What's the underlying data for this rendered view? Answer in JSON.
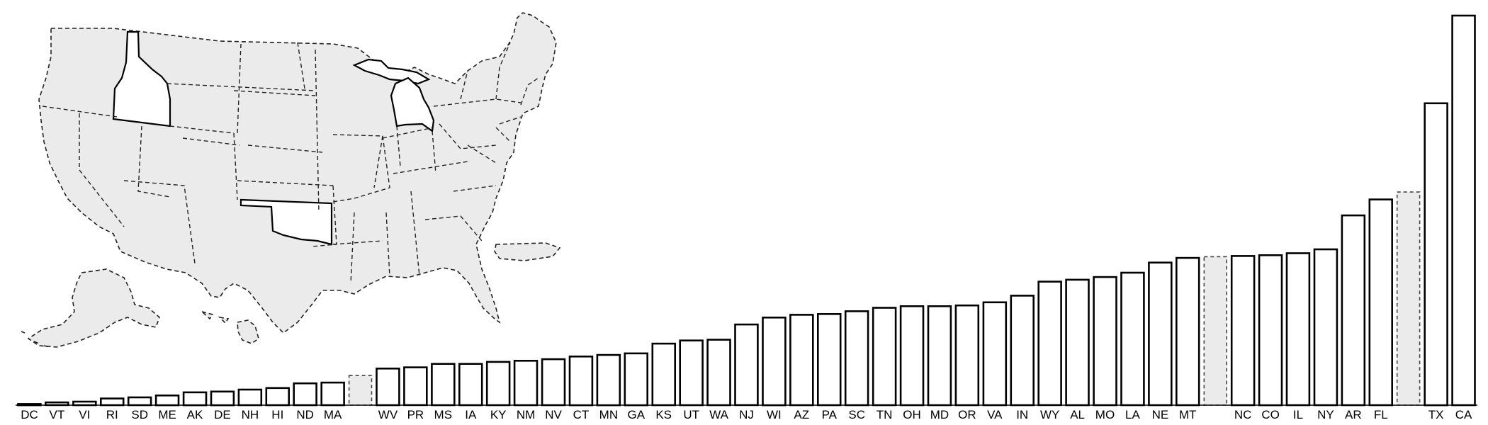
{
  "chart_data": {
    "type": "bar",
    "title": "",
    "xlabel": "",
    "ylabel": "",
    "ylim": [
      0,
      100
    ],
    "grid": false,
    "categories": [
      "DC",
      "VT",
      "VI",
      "RI",
      "SD",
      "ME",
      "AK",
      "DE",
      "NH",
      "HI",
      "ND",
      "MA",
      "",
      "WV",
      "PR",
      "MS",
      "IA",
      "KY",
      "NM",
      "NV",
      "CT",
      "MN",
      "GA",
      "KS",
      "UT",
      "WA",
      "NJ",
      "WI",
      "AZ",
      "PA",
      "SC",
      "TN",
      "OH",
      "MD",
      "OR",
      "VA",
      "IN",
      "WY",
      "AL",
      "MO",
      "LA",
      "NE",
      "MT",
      "",
      "NC",
      "CO",
      "IL",
      "NY",
      "AR",
      "FL",
      "",
      "TX",
      "CA"
    ],
    "values": [
      0.3,
      0.7,
      0.9,
      1.7,
      2.0,
      2.5,
      3.3,
      3.5,
      4.0,
      4.4,
      5.6,
      5.8,
      7.6,
      9.4,
      9.7,
      10.6,
      10.6,
      11.1,
      11.4,
      11.8,
      12.5,
      12.9,
      13.3,
      15.8,
      16.6,
      16.8,
      20.7,
      22.5,
      23.2,
      23.4,
      24.1,
      25.0,
      25.4,
      25.4,
      25.6,
      26.4,
      28.1,
      31.7,
      32.2,
      32.9,
      34.0,
      36.6,
      37.8,
      38.1,
      38.3,
      38.5,
      39.0,
      40.0,
      48.7,
      52.8,
      54.7,
      77.5,
      100.0
    ],
    "missing": [
      false,
      false,
      false,
      false,
      false,
      false,
      false,
      false,
      false,
      false,
      false,
      false,
      true,
      false,
      false,
      false,
      false,
      false,
      false,
      false,
      false,
      false,
      false,
      false,
      false,
      false,
      false,
      false,
      false,
      false,
      false,
      false,
      false,
      false,
      false,
      false,
      false,
      false,
      false,
      false,
      false,
      false,
      false,
      true,
      false,
      false,
      false,
      false,
      false,
      false,
      true,
      false,
      false
    ]
  },
  "map": {
    "highlighted_states": [
      "ID",
      "MI",
      "OK"
    ],
    "colors": {
      "land": "#ebebeb",
      "highlight": "#ffffff",
      "stroke": "#222222"
    }
  }
}
